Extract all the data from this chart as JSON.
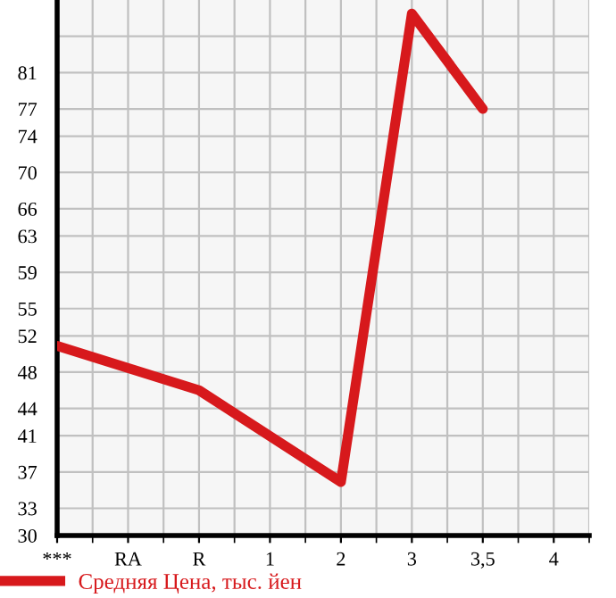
{
  "chart_data": {
    "type": "line",
    "categories": [
      "***",
      "RA",
      "R",
      "1",
      "2",
      "3",
      "3,5",
      "4"
    ],
    "series": [
      {
        "name": "Средняя Цена, тыс. йен",
        "color": "#d7191c",
        "values": [
          50.9,
          null,
          46,
          null,
          35.9,
          87.5,
          77,
          null
        ]
      }
    ],
    "ylim": [
      30,
      89
    ],
    "yticks": [
      30,
      33,
      37,
      41,
      44,
      48,
      52,
      55,
      59,
      63,
      66,
      70,
      74,
      77,
      81,
      {
        "value": 85,
        "label": null
      }
    ],
    "grid": true,
    "legend": "bottom left",
    "marker": "none",
    "line_style": "solid"
  }
}
